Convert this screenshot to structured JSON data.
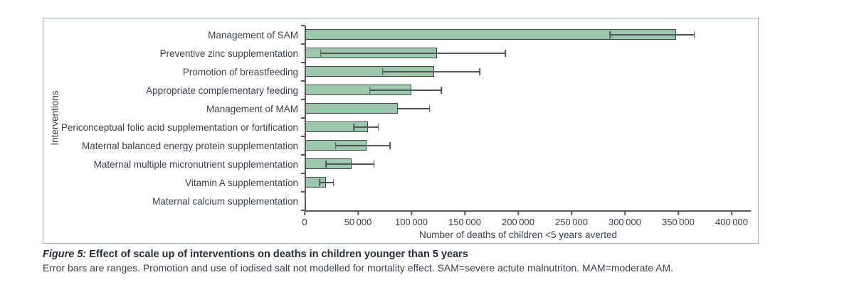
{
  "figure": {
    "y_axis_title": "Interventions",
    "x_axis_title": "Number of deaths of children <5 years averted"
  },
  "caption": {
    "figure_label": "Figure 5:",
    "title": " Effect of scale up of interventions on deaths in children younger than 5 years",
    "note": "Error bars are ranges. Promotion and use of iodised salt not modelled for mortality effect. SAM=severe actute malnutriton. MAM=moderate AM."
  },
  "colors": {
    "bar_fill": "#9cc8ae",
    "bar_border": "#3e453f",
    "error_bar": "#515356",
    "axis": "#56585c",
    "text": "#3a4150",
    "caption_title": "#272d38",
    "panel_border": "#93bea3"
  },
  "chart_data": {
    "type": "bar",
    "orientation": "horizontal",
    "title": "",
    "xlabel": "Number of deaths of children <5 years averted",
    "ylabel": "Interventions",
    "xlim": [
      0,
      400000
    ],
    "grid": false,
    "legend": null,
    "x_ticks": [
      0,
      50000,
      100000,
      150000,
      200000,
      250000,
      300000,
      350000,
      400000
    ],
    "x_tick_labels": [
      "0",
      "50 000",
      "100 000",
      "150 000",
      "200 000",
      "250 000",
      "300 000",
      "350 000",
      "400 000"
    ],
    "categories": [
      "Management of SAM",
      "Preventive zinc supplementation",
      "Promotion of breastfeeding",
      "Appropriate complementary feeding",
      "Management of MAM",
      "Periconceptual folic acid supplementation or fortification",
      "Maternal balanced energy protein supplementation",
      "Maternal multiple micronutrient supplementation",
      "Vitamin A supplementation",
      "Maternal calcium supplementation"
    ],
    "values": [
      348000,
      124000,
      121000,
      100000,
      87000,
      59000,
      58000,
      44000,
      20000,
      0
    ],
    "error_low": [
      286000,
      15000,
      73000,
      61000,
      87000,
      46000,
      29000,
      20000,
      14000,
      0
    ],
    "error_high": [
      365000,
      188000,
      164000,
      128000,
      117000,
      69000,
      80000,
      65000,
      27000,
      0
    ]
  }
}
